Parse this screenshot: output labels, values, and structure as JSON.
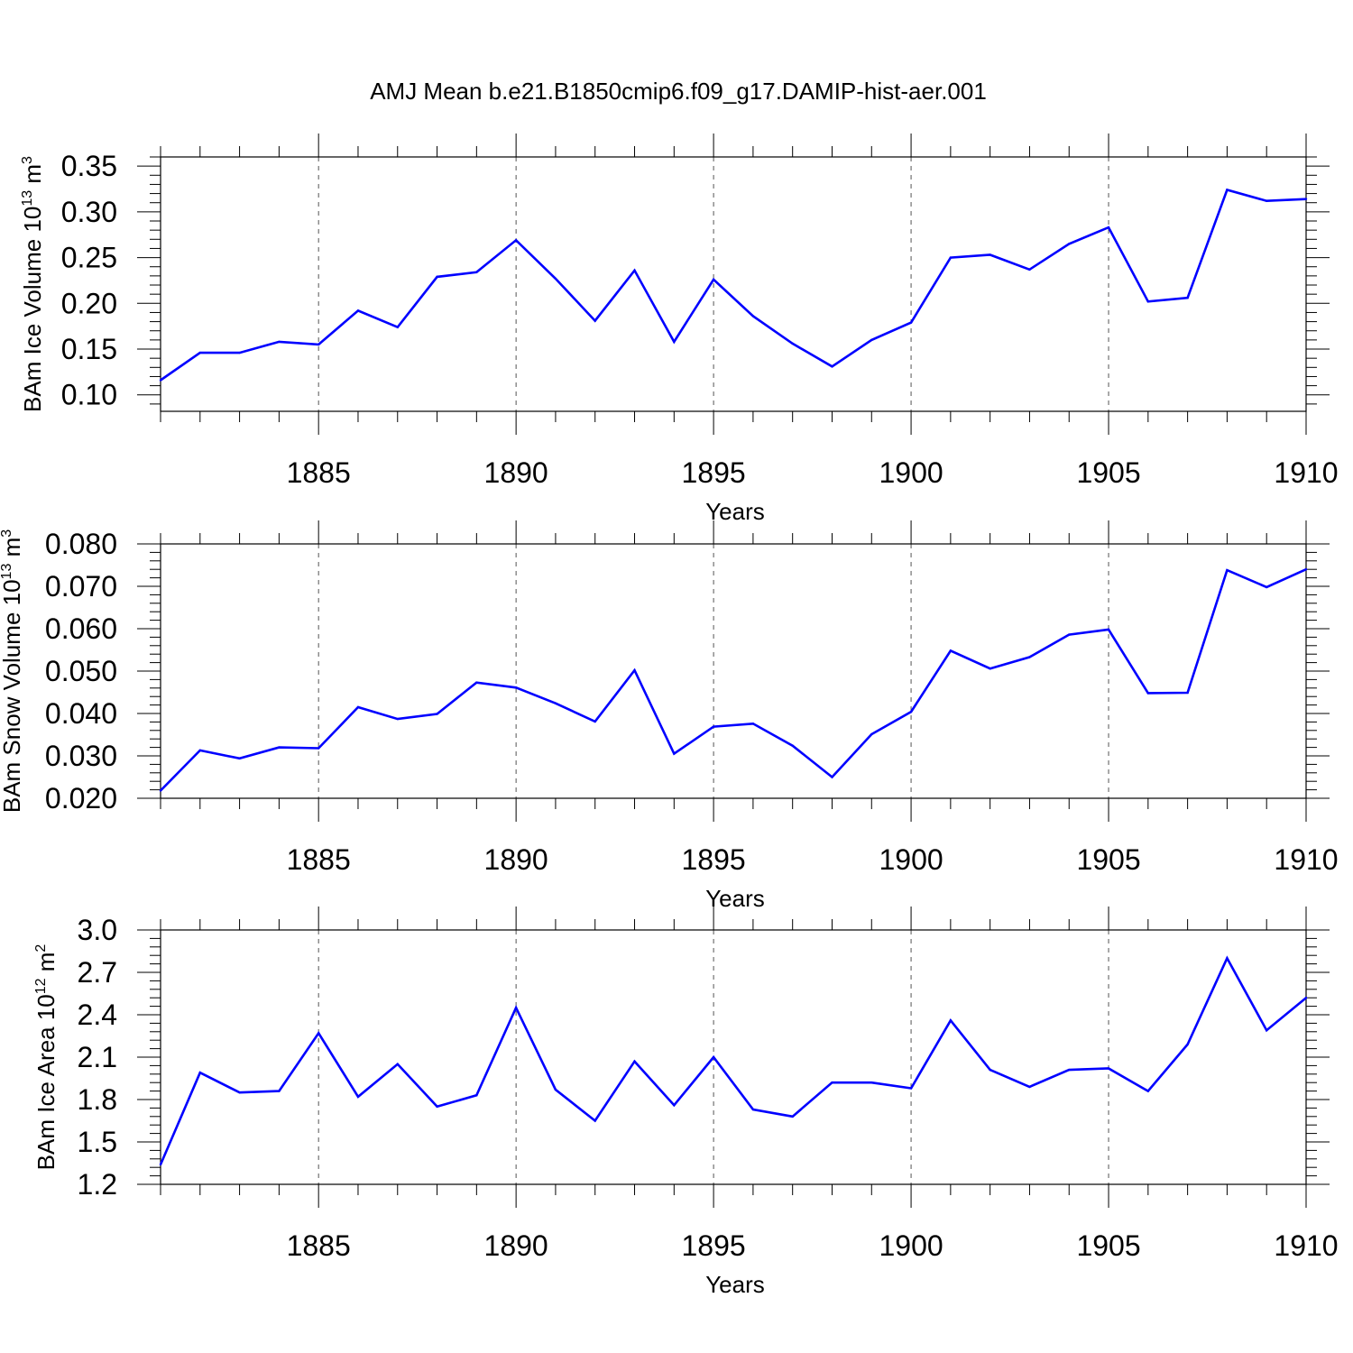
{
  "title": "AMJ Mean b.e21.B1850cmip6.f09_g17.DAMIP-hist-aer.001",
  "colors": {
    "series": "#0000ff",
    "axis": "#000000",
    "grid": "#555555"
  },
  "chart_data": [
    {
      "type": "line",
      "ylabel_main": "BAm Ice Volume 10",
      "ylabel_exp": "13",
      "ylabel_unit": " m",
      "ylabel_unit_exp": "3",
      "xlabel": "Years",
      "xlim": [
        1881,
        1910
      ],
      "ylim": [
        0.082,
        0.36
      ],
      "yticks": [
        0.1,
        0.15,
        0.2,
        0.25,
        0.3,
        0.35
      ],
      "ytick_labels": [
        "0.10",
        "0.15",
        "0.20",
        "0.25",
        "0.30",
        "0.35"
      ],
      "xticks": [
        1885,
        1890,
        1895,
        1900,
        1905,
        1910
      ],
      "xtick_labels": [
        "1885",
        "1890",
        "1895",
        "1900",
        "1905",
        "1910"
      ],
      "x": [
        1881,
        1882,
        1883,
        1884,
        1885,
        1886,
        1887,
        1888,
        1889,
        1890,
        1891,
        1892,
        1893,
        1894,
        1895,
        1896,
        1897,
        1898,
        1899,
        1900,
        1901,
        1902,
        1903,
        1904,
        1905,
        1906,
        1907,
        1908,
        1909,
        1910
      ],
      "values": [
        0.116,
        0.146,
        0.146,
        0.158,
        0.155,
        0.192,
        0.174,
        0.229,
        0.234,
        0.269,
        0.227,
        0.181,
        0.236,
        0.158,
        0.226,
        0.186,
        0.156,
        0.131,
        0.16,
        0.179,
        0.25,
        0.253,
        0.237,
        0.265,
        0.283,
        0.202,
        0.206,
        0.324,
        0.312,
        0.314
      ]
    },
    {
      "type": "line",
      "ylabel_main": "BAm Snow Volume 10",
      "ylabel_exp": "13",
      "ylabel_unit": " m",
      "ylabel_unit_exp": "3",
      "xlabel": "Years",
      "xlim": [
        1881,
        1910
      ],
      "ylim": [
        0.02,
        0.08
      ],
      "yticks": [
        0.02,
        0.03,
        0.04,
        0.05,
        0.06,
        0.07,
        0.08
      ],
      "ytick_labels": [
        "0.020",
        "0.030",
        "0.040",
        "0.050",
        "0.060",
        "0.070",
        "0.080"
      ],
      "xticks": [
        1885,
        1890,
        1895,
        1900,
        1905,
        1910
      ],
      "xtick_labels": [
        "1885",
        "1890",
        "1895",
        "1900",
        "1905",
        "1910"
      ],
      "x": [
        1881,
        1882,
        1883,
        1884,
        1885,
        1886,
        1887,
        1888,
        1889,
        1890,
        1891,
        1892,
        1893,
        1894,
        1895,
        1896,
        1897,
        1898,
        1899,
        1900,
        1901,
        1902,
        1903,
        1904,
        1905,
        1906,
        1907,
        1908,
        1909,
        1910
      ],
      "values": [
        0.0218,
        0.0313,
        0.0294,
        0.032,
        0.0318,
        0.0415,
        0.0387,
        0.0399,
        0.0473,
        0.0461,
        0.0424,
        0.0381,
        0.0502,
        0.0305,
        0.0369,
        0.0376,
        0.0324,
        0.025,
        0.0351,
        0.0404,
        0.0548,
        0.0506,
        0.0533,
        0.0586,
        0.0598,
        0.0448,
        0.0449,
        0.0738,
        0.0698,
        0.074
      ]
    },
    {
      "type": "line",
      "ylabel_main": "BAm Ice Area 10",
      "ylabel_exp": "12",
      "ylabel_unit": " m",
      "ylabel_unit_exp": "2",
      "xlabel": "Years",
      "xlim": [
        1881,
        1910
      ],
      "ylim": [
        1.2,
        3.0
      ],
      "yticks": [
        1.2,
        1.5,
        1.8,
        2.1,
        2.4,
        2.7,
        3.0
      ],
      "ytick_labels": [
        "1.2",
        "1.5",
        "1.8",
        "2.1",
        "2.4",
        "2.7",
        "3.0"
      ],
      "xticks": [
        1885,
        1890,
        1895,
        1900,
        1905,
        1910
      ],
      "xtick_labels": [
        "1885",
        "1890",
        "1895",
        "1900",
        "1905",
        "1910"
      ],
      "x": [
        1881,
        1882,
        1883,
        1884,
        1885,
        1886,
        1887,
        1888,
        1889,
        1890,
        1891,
        1892,
        1893,
        1894,
        1895,
        1896,
        1897,
        1898,
        1899,
        1900,
        1901,
        1902,
        1903,
        1904,
        1905,
        1906,
        1907,
        1908,
        1909,
        1910
      ],
      "values": [
        1.34,
        1.99,
        1.85,
        1.86,
        2.27,
        1.82,
        2.05,
        1.75,
        1.83,
        2.45,
        1.87,
        1.65,
        2.07,
        1.76,
        2.1,
        1.73,
        1.68,
        1.92,
        1.92,
        1.88,
        2.36,
        2.01,
        1.89,
        2.01,
        2.02,
        1.86,
        2.19,
        2.8,
        2.29,
        2.52
      ]
    }
  ]
}
